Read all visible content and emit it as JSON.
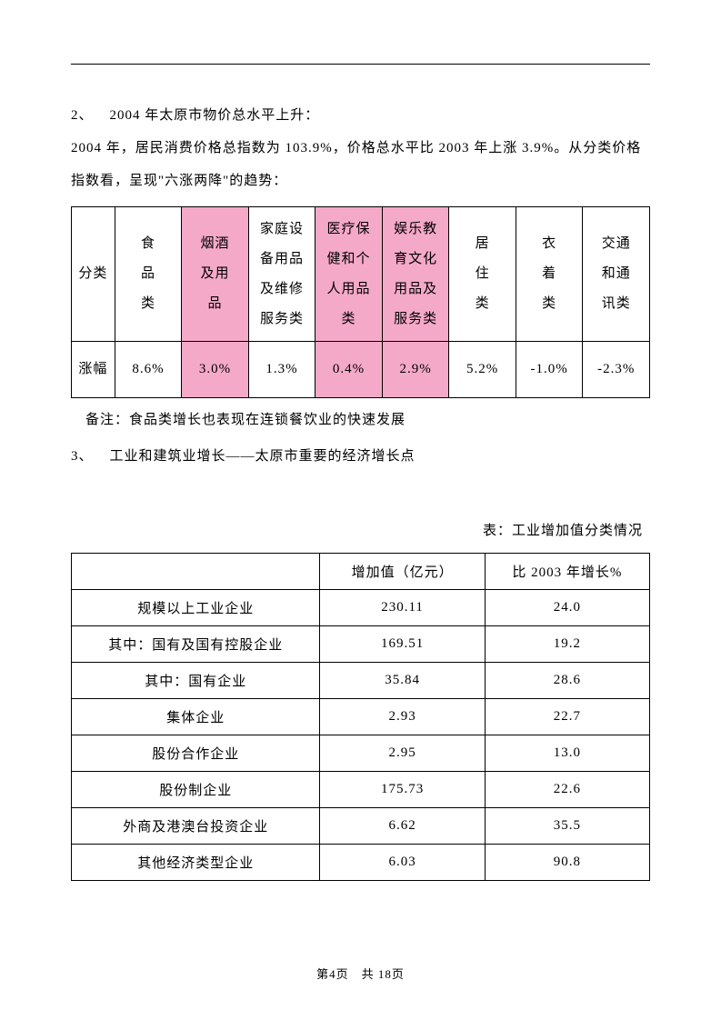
{
  "section2": {
    "num": "2、",
    "heading": "2004 年太原市物价总水平上升：",
    "para": "2004 年，居民消费价格总指数为 103.9%，价格总水平比 2003 年上涨 3.9%。从分类价格指数看，呈现\"六涨两降\"的趋势：",
    "note": "备注：食品类增长也表现在连锁餐饮业的快速发展"
  },
  "table1": {
    "highlight_color": "#f5a9c8",
    "headers": {
      "cat_label": "分类",
      "change_label": "涨幅",
      "cols": [
        {
          "label": "食品类",
          "highlight": false
        },
        {
          "label": "烟酒及用品",
          "highlight": true
        },
        {
          "label": "家庭设备用品及维修服务类",
          "highlight": false
        },
        {
          "label": "医疗保健和个人用品类",
          "highlight": true
        },
        {
          "label": "娱乐教育文化用品及服务类",
          "highlight": true
        },
        {
          "label": "居住类",
          "highlight": false
        },
        {
          "label": "衣着类",
          "highlight": false
        },
        {
          "label": "交通和通讯类",
          "highlight": false
        }
      ]
    },
    "values": [
      {
        "val": "8.6%",
        "highlight": false
      },
      {
        "val": "3.0%",
        "highlight": true
      },
      {
        "val": "1.3%",
        "highlight": false
      },
      {
        "val": "0.4%",
        "highlight": true
      },
      {
        "val": "2.9%",
        "highlight": true
      },
      {
        "val": "5.2%",
        "highlight": false
      },
      {
        "val": "-1.0%",
        "highlight": false
      },
      {
        "val": "-2.3%",
        "highlight": false
      }
    ]
  },
  "section3": {
    "num": "3、",
    "heading": "工业和建筑业增长——太原市重要的经济增长点"
  },
  "table2": {
    "caption": "表：工业增加值分类情况",
    "columns": [
      "",
      "增加值（亿元）",
      "比 2003 年增长%"
    ],
    "rows": [
      [
        "规模以上工业企业",
        "230.11",
        "24.0"
      ],
      [
        "其中：国有及国有控股企业",
        "169.51",
        "19.2"
      ],
      [
        "其中：国有企业",
        "35.84",
        "28.6"
      ],
      [
        "集体企业",
        "2.93",
        "22.7"
      ],
      [
        "股份合作企业",
        "2.95",
        "13.0"
      ],
      [
        "股份制企业",
        "175.73",
        "22.6"
      ],
      [
        "外商及港澳台投资企业",
        "6.62",
        "35.5"
      ],
      [
        "其他经济类型企业",
        "6.03",
        "90.8"
      ]
    ]
  },
  "footer": {
    "page_current": "4",
    "page_total": "18",
    "prefix": "第",
    "mid": "页　共 ",
    "suffix": "页"
  }
}
